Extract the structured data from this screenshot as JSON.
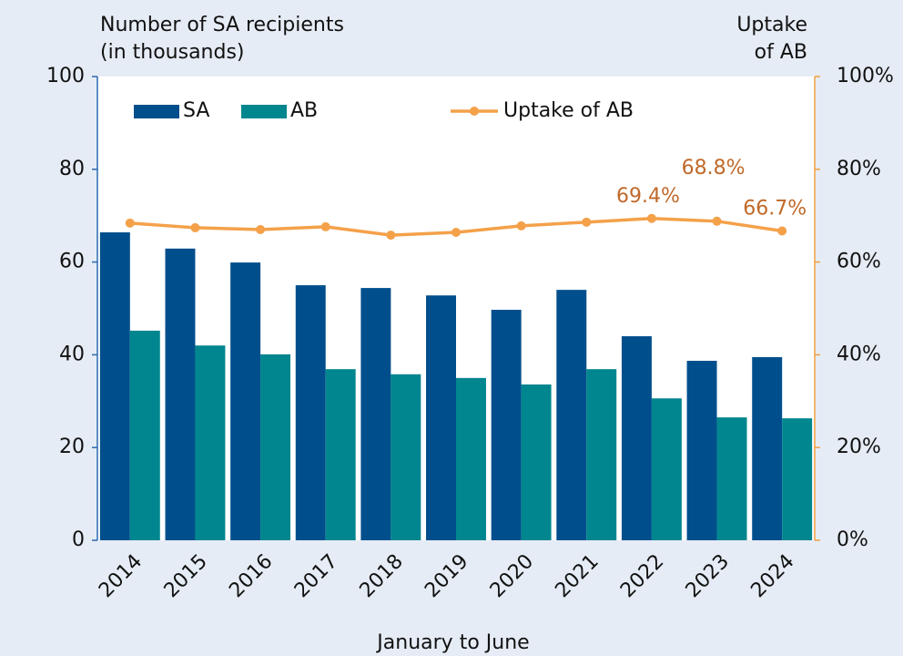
{
  "chart_data": {
    "type": "bar_line",
    "y_title": [
      "Number of SA recipients",
      "(in thousands)"
    ],
    "y2_title": [
      "Uptake",
      "of AB"
    ],
    "x_title": "January to June",
    "categories": [
      "2014",
      "2015",
      "2016",
      "2017",
      "2018",
      "2019",
      "2020",
      "2021",
      "2022",
      "2023",
      "2024"
    ],
    "series": [
      {
        "name": "SA",
        "color": "#004f8c",
        "type": "bar",
        "values": [
          66.4,
          62.9,
          59.9,
          55.0,
          54.4,
          52.8,
          49.7,
          54.0,
          44.0,
          38.7,
          39.5
        ]
      },
      {
        "name": "AB",
        "color": "#00868f",
        "type": "bar",
        "values": [
          45.2,
          42.0,
          40.1,
          36.9,
          35.8,
          35.0,
          33.6,
          36.9,
          30.6,
          26.5,
          26.3
        ]
      },
      {
        "name": "Uptake of AB",
        "color": "#f4a14a",
        "type": "line",
        "axis": "y2",
        "label_color": "#c0692a",
        "values": [
          68.4,
          67.4,
          67.0,
          67.6,
          65.8,
          66.4,
          67.8,
          68.6,
          69.4,
          68.8,
          66.7
        ],
        "value_labels": [
          null,
          null,
          null,
          null,
          null,
          null,
          null,
          null,
          "69.4%",
          "68.8%",
          "66.7%"
        ]
      }
    ],
    "ylim": [
      0,
      100
    ],
    "yticks": [
      0,
      20,
      40,
      60,
      80,
      100
    ],
    "y2lim": [
      0,
      100
    ],
    "y2ticks": [
      {
        "value": 0,
        "label": "0%"
      },
      {
        "value": 20,
        "label": "20%"
      },
      {
        "value": 40,
        "label": "40%"
      },
      {
        "value": 60,
        "label": "60%"
      },
      {
        "value": 80,
        "label": "80%"
      },
      {
        "value": 100,
        "label": "100%"
      }
    ],
    "grid": false,
    "legend": "top-left"
  }
}
